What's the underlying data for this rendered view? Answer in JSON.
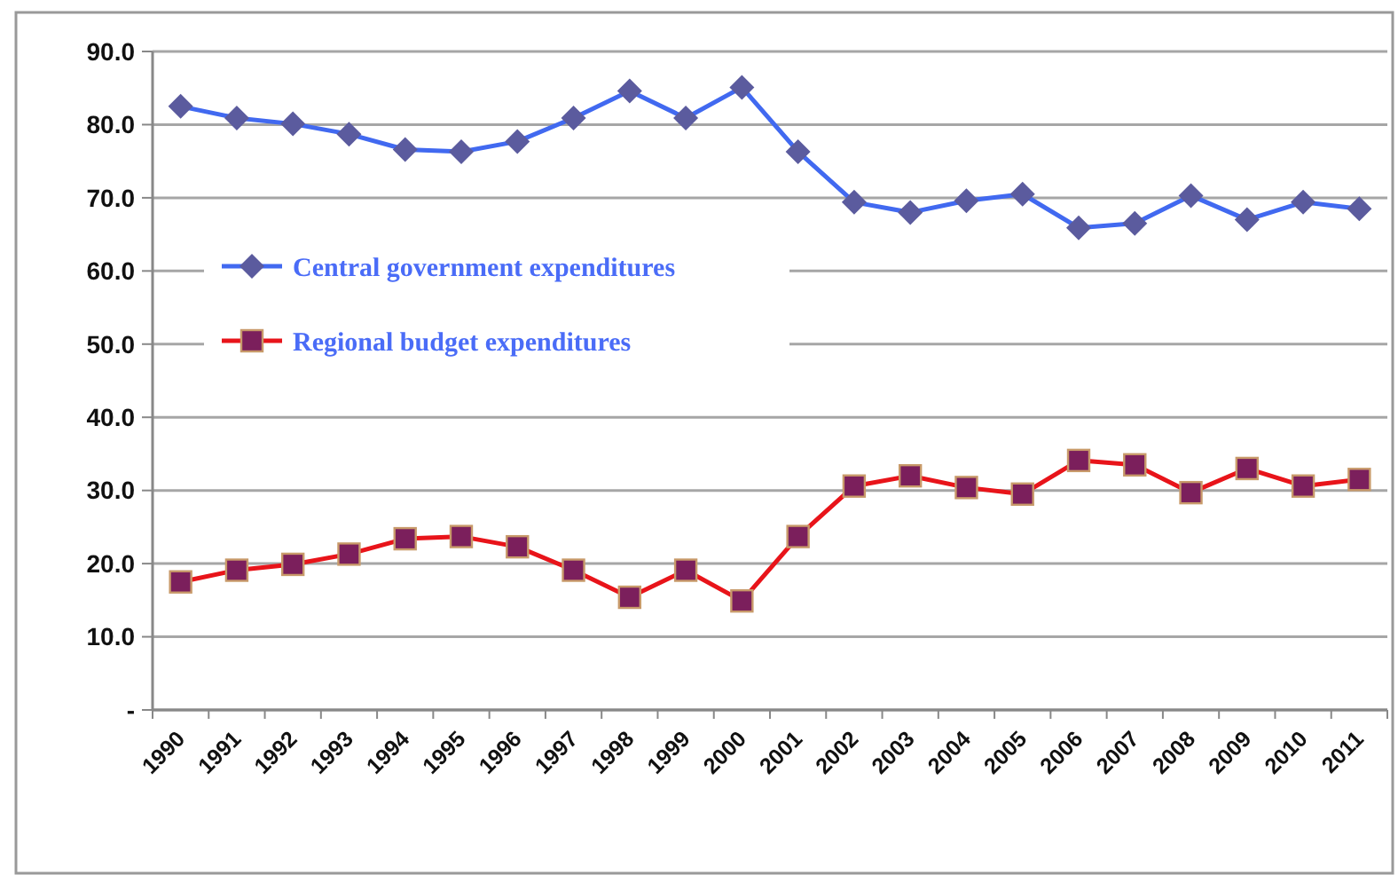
{
  "chart_data": {
    "type": "line",
    "categories": [
      "1990",
      "1991",
      "1992",
      "1993",
      "1994",
      "1995",
      "1996",
      "1997",
      "1998",
      "1999",
      "2000",
      "2001",
      "2002",
      "2003",
      "2004",
      "2005",
      "2006",
      "2007",
      "2008",
      "2009",
      "2010",
      "2011"
    ],
    "series": [
      {
        "name": "Central government expenditures",
        "color": "#4169f0",
        "marker": "diamond",
        "values": [
          82.5,
          80.9,
          80.1,
          78.7,
          76.6,
          76.3,
          77.7,
          80.9,
          84.6,
          80.9,
          85.1,
          76.3,
          69.4,
          68.0,
          69.6,
          70.5,
          65.9,
          66.5,
          70.3,
          67.0,
          69.4,
          68.5
        ]
      },
      {
        "name": "Regional budget expenditures",
        "color": "#e8141a",
        "marker": "square",
        "values": [
          17.5,
          19.1,
          19.9,
          21.3,
          23.4,
          23.7,
          22.3,
          19.1,
          15.4,
          19.1,
          14.9,
          23.7,
          30.6,
          32.0,
          30.4,
          29.5,
          34.1,
          33.5,
          29.7,
          33.0,
          30.6,
          31.5
        ]
      }
    ],
    "ylim": [
      0,
      90
    ],
    "yticks": [
      {
        "value": 0,
        "label": "-"
      },
      {
        "value": 10,
        "label": "10.0"
      },
      {
        "value": 20,
        "label": "20.0"
      },
      {
        "value": 30,
        "label": "30.0"
      },
      {
        "value": 40,
        "label": "40.0"
      },
      {
        "value": 50,
        "label": "50.0"
      },
      {
        "value": 60,
        "label": "60.0"
      },
      {
        "value": 70,
        "label": "70.0"
      },
      {
        "value": 80,
        "label": "80.0"
      },
      {
        "value": 90,
        "label": "90.0"
      }
    ],
    "grid": "y",
    "legend": "center left",
    "line_style": "solid"
  }
}
